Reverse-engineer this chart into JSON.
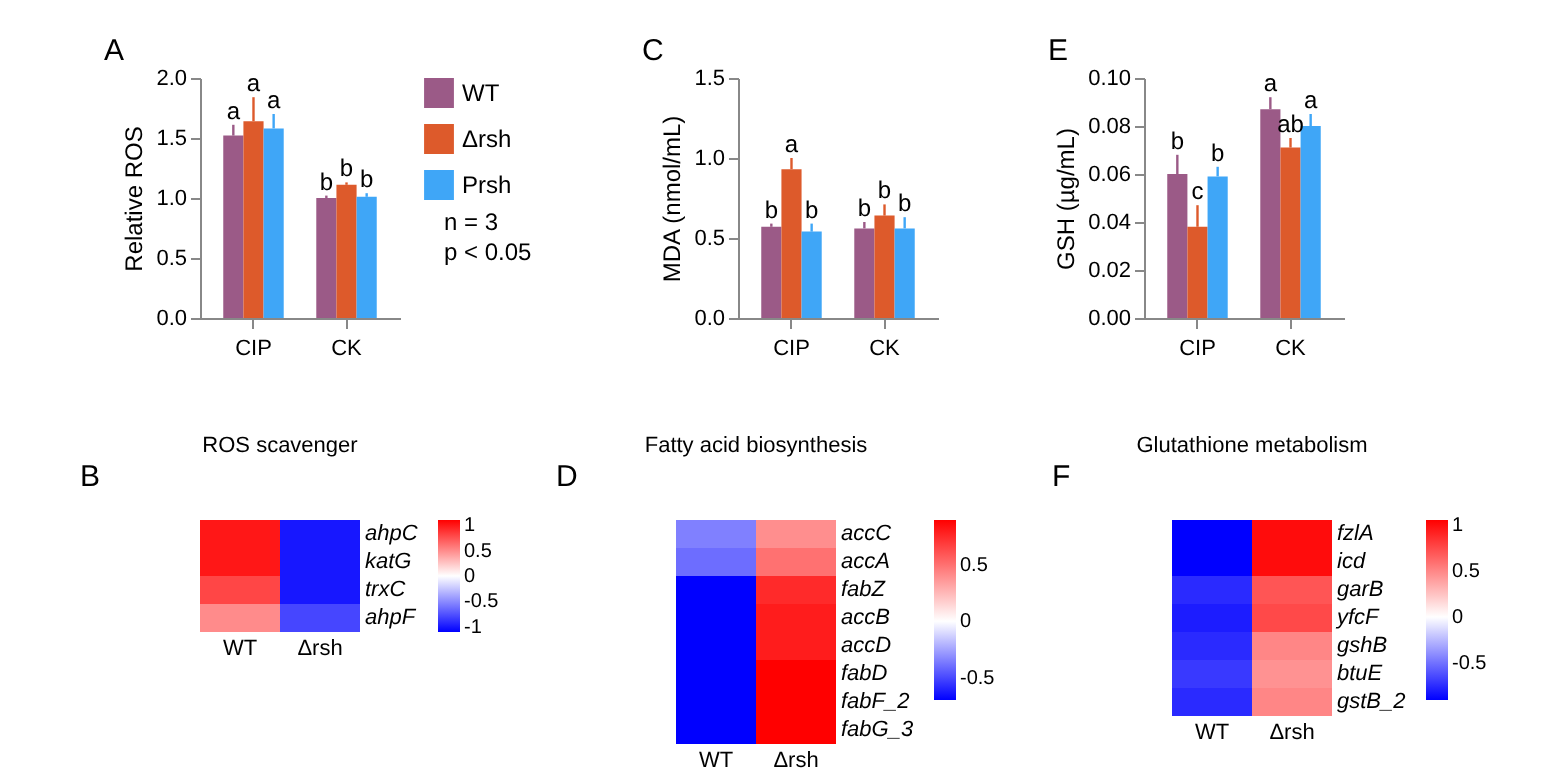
{
  "chart_data": [
    {
      "type": "bar",
      "categories": [
        "CIP",
        "CK"
      ],
      "ylabel": "Relative ROS",
      "ylim": [
        0,
        2
      ],
      "yticks": [
        {
          "value": 0,
          "label": "0.0"
        },
        0.5,
        {
          "value": 1,
          "label": "1.0"
        },
        1.5,
        {
          "value": 2,
          "label": "2.0"
        }
      ],
      "legend": "right",
      "annotations": [
        "A",
        "n = 3",
        "p < 0.05"
      ],
      "series": [
        {
          "name": "WT",
          "color": "#9b5a87",
          "values": [
            1.52,
            1.0
          ],
          "errors": [
            [
              1.52,
              1.61
            ],
            [
              1.0,
              1.02
            ]
          ],
          "value_labels": [
            "a",
            "b"
          ]
        },
        {
          "name": "Δrsh",
          "color": "#dd5a2b",
          "values": [
            1.64,
            1.11
          ],
          "errors": [
            [
              1.64,
              1.84
            ],
            [
              1.11,
              1.13
            ]
          ],
          "value_labels": [
            "a",
            "b"
          ]
        },
        {
          "name": "Prsh",
          "color": "#3fa6f7",
          "values": [
            1.58,
            1.01
          ],
          "errors": [
            [
              1.58,
              1.7
            ],
            [
              1.01,
              1.04
            ]
          ],
          "value_labels": [
            "a",
            "b"
          ]
        }
      ]
    },
    {
      "type": "bar",
      "categories": [
        "CIP",
        "CK"
      ],
      "ylabel": "MDA (nmol/mL)",
      "ylim": [
        0,
        1.5
      ],
      "yticks": [
        {
          "value": 0,
          "label": "0.0"
        },
        0.5,
        {
          "value": 1,
          "label": "1.0"
        },
        1.5
      ],
      "annotations": [
        "C"
      ],
      "series": [
        {
          "color": "#9b5a87",
          "values": [
            0.57,
            0.56
          ],
          "errors": [
            [
              0.57,
              0.59
            ],
            [
              0.56,
              0.6
            ]
          ],
          "value_labels": [
            "b",
            "b"
          ]
        },
        {
          "color": "#dd5a2b",
          "values": [
            0.93,
            0.64
          ],
          "errors": [
            [
              0.93,
              1.0
            ],
            [
              0.64,
              0.71
            ]
          ],
          "value_labels": [
            "a",
            "b"
          ]
        },
        {
          "color": "#3fa6f7",
          "values": [
            0.54,
            0.56
          ],
          "errors": [
            [
              0.54,
              0.59
            ],
            [
              0.56,
              0.63
            ]
          ],
          "value_labels": [
            "b",
            "b"
          ]
        }
      ]
    },
    {
      "type": "bar",
      "categories": [
        "CIP",
        "CK"
      ],
      "ylabel": "GSH (µg/mL)",
      "ylim": [
        0,
        0.1
      ],
      "yticks": [
        {
          "value": 0,
          "label": "0.00"
        },
        0.02,
        0.04,
        0.06,
        0.08,
        {
          "value": 0.1,
          "label": "0.10"
        }
      ],
      "annotations": [
        "E"
      ],
      "series": [
        {
          "color": "#9b5a87",
          "values": [
            0.06,
            0.087
          ],
          "errors": [
            [
              0.06,
              0.068
            ],
            [
              0.087,
              0.092
            ]
          ],
          "value_labels": [
            "b",
            "a"
          ]
        },
        {
          "color": "#dd5a2b",
          "values": [
            0.038,
            0.071
          ],
          "errors": [
            [
              0.038,
              0.047
            ],
            [
              0.071,
              0.075
            ]
          ],
          "value_labels": [
            "c",
            "ab"
          ]
        },
        {
          "color": "#3fa6f7",
          "values": [
            0.059,
            0.08
          ],
          "errors": [
            [
              0.059,
              0.063
            ],
            [
              0.08,
              0.085
            ]
          ],
          "value_labels": [
            "b",
            "a"
          ]
        }
      ]
    },
    {
      "type": "heatmap",
      "title": "ROS scavenger",
      "annotations": [
        "B"
      ],
      "categories": [
        "WT",
        "Δrsh"
      ],
      "y_categories": [
        "ahpC",
        "katG",
        "trxC",
        "ahpF"
      ],
      "clim": [
        -1.1,
        1.1
      ],
      "cticks": [
        1,
        0.5,
        0,
        -0.5,
        -1
      ],
      "cells": [
        [
          1,
          -1
        ],
        [
          1,
          -1
        ],
        [
          0.8,
          -1
        ],
        [
          0.5,
          -0.8
        ]
      ]
    },
    {
      "type": "heatmap",
      "title": "Fatty acid biosynthesis",
      "annotations": [
        "D"
      ],
      "categories": [
        "WT",
        "Δrsh"
      ],
      "y_categories": [
        "accC",
        "accA",
        "fabZ",
        "accB",
        "accD",
        "fabD",
        "fabF_2",
        "fabG_3"
      ],
      "clim": [
        -0.7,
        0.9
      ],
      "cticks": [
        0.5,
        0,
        -0.5
      ],
      "cells": [
        [
          -0.35,
          0.4
        ],
        [
          -0.4,
          0.5
        ],
        [
          -0.7,
          0.75
        ],
        [
          -0.7,
          0.8
        ],
        [
          -0.7,
          0.8
        ],
        [
          -0.7,
          0.9
        ],
        [
          -0.7,
          0.9
        ],
        [
          -0.7,
          0.9
        ]
      ]
    },
    {
      "type": "heatmap",
      "title": "Glutathione metabolism",
      "annotations": [
        "F"
      ],
      "categories": [
        "WT",
        "Δrsh"
      ],
      "y_categories": [
        "fzlA",
        "icd",
        "garB",
        "yfcF",
        "gshB",
        "btuE",
        "gstB_2"
      ],
      "clim": [
        -0.9,
        1.05
      ],
      "cticks": [
        1,
        0.5,
        0,
        -0.5
      ],
      "cells": [
        [
          -0.9,
          1
        ],
        [
          -0.9,
          1
        ],
        [
          -0.75,
          0.7
        ],
        [
          -0.8,
          0.75
        ],
        [
          -0.75,
          0.5
        ],
        [
          -0.7,
          0.45
        ],
        [
          -0.75,
          0.5
        ]
      ]
    }
  ]
}
